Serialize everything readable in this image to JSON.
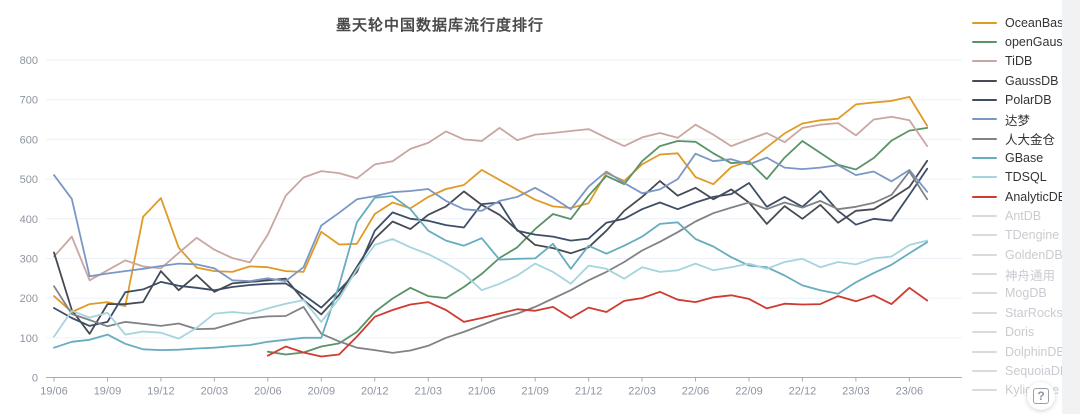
{
  "page": {
    "help_label": "?"
  },
  "legend": {
    "items": [
      {
        "label": "OceanBase",
        "color": "#e09a26",
        "active": true
      },
      {
        "label": "openGauss",
        "color": "#5a9367",
        "active": true
      },
      {
        "label": "TiDB",
        "color": "#c9a7a1",
        "active": true
      },
      {
        "label": "GaussDB",
        "color": "#464a52",
        "active": true
      },
      {
        "label": "PolarDB",
        "color": "#3d4e66",
        "active": true
      },
      {
        "label": "达梦",
        "color": "#7b97c6",
        "active": true
      },
      {
        "label": "人大金仓",
        "color": "#808285",
        "active": true
      },
      {
        "label": "GBase",
        "color": "#67acbf",
        "active": true
      },
      {
        "label": "TDSQL",
        "color": "#a6d4de",
        "active": true
      },
      {
        "label": "AnalyticDB",
        "color": "#cf3b30",
        "active": true
      },
      {
        "label": "AntDB",
        "color": "#d8dade",
        "active": false
      },
      {
        "label": "TDengine",
        "color": "#d8dade",
        "active": false
      },
      {
        "label": "GoldenDB",
        "color": "#d8dade",
        "active": false
      },
      {
        "label": "神舟通用",
        "color": "#d8dade",
        "active": false
      },
      {
        "label": "MogDB",
        "color": "#d8dade",
        "active": false
      },
      {
        "label": "StarRocks",
        "color": "#d8dade",
        "active": false
      },
      {
        "label": "Doris",
        "color": "#d8dade",
        "active": false
      },
      {
        "label": "DolphinDB",
        "color": "#d8dade",
        "active": false
      },
      {
        "label": "SequoiaDB",
        "color": "#d8dade",
        "active": false
      },
      {
        "label": "Kyligence",
        "color": "#d8dade",
        "active": false
      }
    ]
  },
  "chart_data": {
    "type": "line",
    "title": "墨天轮中国数据库流行度排行",
    "xlabel": "",
    "ylabel": "",
    "ylim": [
      0,
      800
    ],
    "y_ticks": [
      0,
      100,
      200,
      300,
      400,
      500,
      600,
      700,
      800
    ],
    "grid": true,
    "legend_position": "right",
    "x_tick_every": 3,
    "x": [
      "19/06",
      "19/07",
      "19/08",
      "19/09",
      "19/10",
      "19/11",
      "19/12",
      "20/01",
      "20/02",
      "20/03",
      "20/04",
      "20/05",
      "20/06",
      "20/07",
      "20/08",
      "20/09",
      "20/10",
      "20/11",
      "20/12",
      "21/01",
      "21/02",
      "21/03",
      "21/04",
      "21/05",
      "21/06",
      "21/07",
      "21/08",
      "21/09",
      "21/10",
      "21/11",
      "21/12",
      "22/01",
      "22/02",
      "22/03",
      "22/04",
      "22/05",
      "22/06",
      "22/07",
      "22/08",
      "22/09",
      "22/10",
      "22/11",
      "22/12",
      "23/01",
      "23/02",
      "23/03",
      "23/04",
      "23/05",
      "23/06",
      "23/07"
    ],
    "series": [
      {
        "name": "OceanBase",
        "color": "#e09a26",
        "values": [
          205,
          165,
          185,
          190,
          180,
          405,
          452,
          327,
          277,
          268,
          266,
          280,
          278,
          268,
          266,
          367,
          335,
          337,
          412,
          441,
          426,
          455,
          475,
          485,
          523,
          498,
          473,
          448,
          431,
          427,
          439,
          515,
          495,
          537,
          562,
          565,
          505,
          487,
          530,
          545,
          580,
          615,
          640,
          648,
          652,
          688,
          693,
          697,
          707,
          634
        ]
      },
      {
        "name": "openGauss",
        "color": "#5a9367",
        "values": [
          null,
          null,
          null,
          null,
          null,
          null,
          null,
          null,
          null,
          null,
          null,
          null,
          65,
          58,
          63,
          78,
          86,
          115,
          165,
          199,
          226,
          205,
          200,
          228,
          261,
          301,
          328,
          374,
          412,
          399,
          458,
          508,
          487,
          545,
          583,
          596,
          594,
          565,
          540,
          544,
          500,
          554,
          596,
          566,
          536,
          524,
          553,
          597,
          622,
          629
        ]
      },
      {
        "name": "TiDB",
        "color": "#c9a7a1",
        "values": [
          305,
          355,
          245,
          270,
          295,
          280,
          275,
          314,
          352,
          322,
          301,
          290,
          360,
          458,
          504,
          520,
          515,
          502,
          537,
          545,
          576,
          591,
          620,
          600,
          596,
          629,
          598,
          612,
          616,
          621,
          626,
          604,
          583,
          605,
          616,
          604,
          637,
          612,
          583,
          600,
          616,
          593,
          629,
          637,
          641,
          610,
          650,
          657,
          648,
          583
        ]
      },
      {
        "name": "GaussDB",
        "color": "#464a52",
        "values": [
          315,
          170,
          110,
          185,
          185,
          190,
          268,
          220,
          258,
          216,
          237,
          241,
          245,
          249,
          195,
          159,
          208,
          279,
          350,
          393,
          374,
          410,
          431,
          469,
          435,
          410,
          372,
          334,
          326,
          313,
          328,
          370,
          420,
          455,
          495,
          458,
          478,
          449,
          474,
          441,
          387,
          432,
          400,
          435,
          390,
          420,
          424,
          451,
          480,
          546
        ]
      },
      {
        "name": "PolarDB",
        "color": "#3d4e66",
        "values": [
          175,
          150,
          130,
          140,
          215,
          222,
          241,
          231,
          226,
          220,
          228,
          233,
          236,
          237,
          208,
          176,
          220,
          266,
          370,
          416,
          400,
          395,
          384,
          378,
          437,
          441,
          370,
          360,
          355,
          345,
          350,
          390,
          400,
          424,
          441,
          424,
          441,
          455,
          462,
          490,
          430,
          455,
          430,
          470,
          420,
          385,
          400,
          395,
          460,
          526
        ]
      },
      {
        "name": "达梦",
        "color": "#7b97c6",
        "values": [
          510,
          450,
          255,
          262,
          268,
          274,
          281,
          287,
          285,
          275,
          245,
          243,
          250,
          243,
          278,
          383,
          415,
          449,
          457,
          467,
          470,
          475,
          445,
          424,
          420,
          445,
          455,
          478,
          453,
          424,
          481,
          519,
          490,
          464,
          474,
          500,
          564,
          545,
          550,
          537,
          554,
          529,
          525,
          529,
          535,
          510,
          519,
          494,
          523,
          468
        ]
      },
      {
        "name": "人大金仓",
        "color": "#808285",
        "values": [
          230,
          160,
          145,
          129,
          140,
          135,
          130,
          136,
          122,
          123,
          136,
          149,
          154,
          155,
          178,
          110,
          91,
          75,
          69,
          62,
          68,
          80,
          100,
          115,
          132,
          149,
          161,
          178,
          199,
          220,
          245,
          266,
          291,
          320,
          342,
          366,
          393,
          414,
          428,
          441,
          424,
          441,
          428,
          445,
          424,
          430,
          440,
          460,
          519,
          449
        ]
      },
      {
        "name": "GBase",
        "color": "#67acbf",
        "values": [
          75,
          90,
          95,
          108,
          85,
          71,
          69,
          70,
          73,
          75,
          79,
          82,
          90,
          95,
          100,
          100,
          232,
          391,
          453,
          457,
          424,
          370,
          345,
          332,
          351,
          297,
          299,
          300,
          337,
          274,
          332,
          312,
          332,
          355,
          387,
          391,
          349,
          330,
          303,
          282,
          278,
          257,
          232,
          220,
          211,
          240,
          263,
          284,
          313,
          341
        ]
      },
      {
        "name": "TDSQL",
        "color": "#a6d4de",
        "values": [
          103,
          168,
          151,
          163,
          108,
          116,
          113,
          98,
          125,
          161,
          165,
          161,
          174,
          186,
          195,
          140,
          199,
          273,
          334,
          349,
          328,
          311,
          288,
          261,
          220,
          236,
          257,
          287,
          266,
          236,
          282,
          274,
          249,
          278,
          266,
          270,
          287,
          270,
          278,
          287,
          274,
          291,
          299,
          278,
          291,
          285,
          300,
          305,
          334,
          345
        ]
      },
      {
        "name": "AnalyticDB",
        "color": "#cf3b30",
        "values": [
          null,
          null,
          null,
          null,
          null,
          null,
          null,
          null,
          null,
          null,
          null,
          null,
          55,
          78,
          63,
          53,
          58,
          103,
          153,
          170,
          184,
          190,
          170,
          140,
          150,
          161,
          172,
          168,
          178,
          150,
          176,
          165,
          193,
          200,
          216,
          196,
          190,
          202,
          207,
          198,
          174,
          186,
          184,
          185,
          205,
          192,
          207,
          185,
          226,
          194
        ]
      }
    ]
  }
}
